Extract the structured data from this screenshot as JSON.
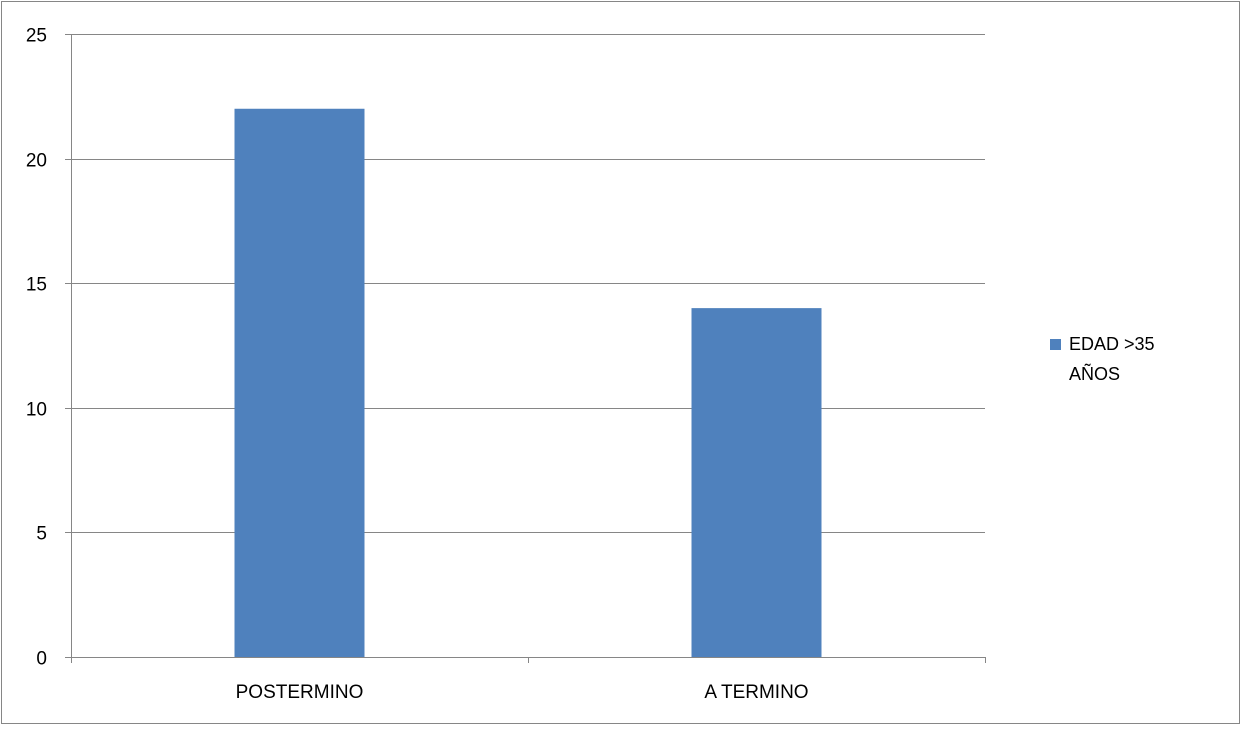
{
  "chart_data": {
    "type": "bar",
    "categories": [
      "POSTERMINO",
      "A TERMINO"
    ],
    "series": [
      {
        "name": "EDAD >35 AÑOS",
        "values": [
          22,
          14
        ]
      }
    ],
    "ylim": [
      0,
      25
    ],
    "yticks": [
      0,
      5,
      10,
      15,
      20,
      25
    ],
    "grid": true,
    "legend_position": "right",
    "legend_lines": [
      "EDAD >35",
      "AÑOS"
    ],
    "colors": {
      "bar": "#4F81BD",
      "grid": "#868686",
      "axis": "#868686",
      "border": "#868686"
    }
  }
}
